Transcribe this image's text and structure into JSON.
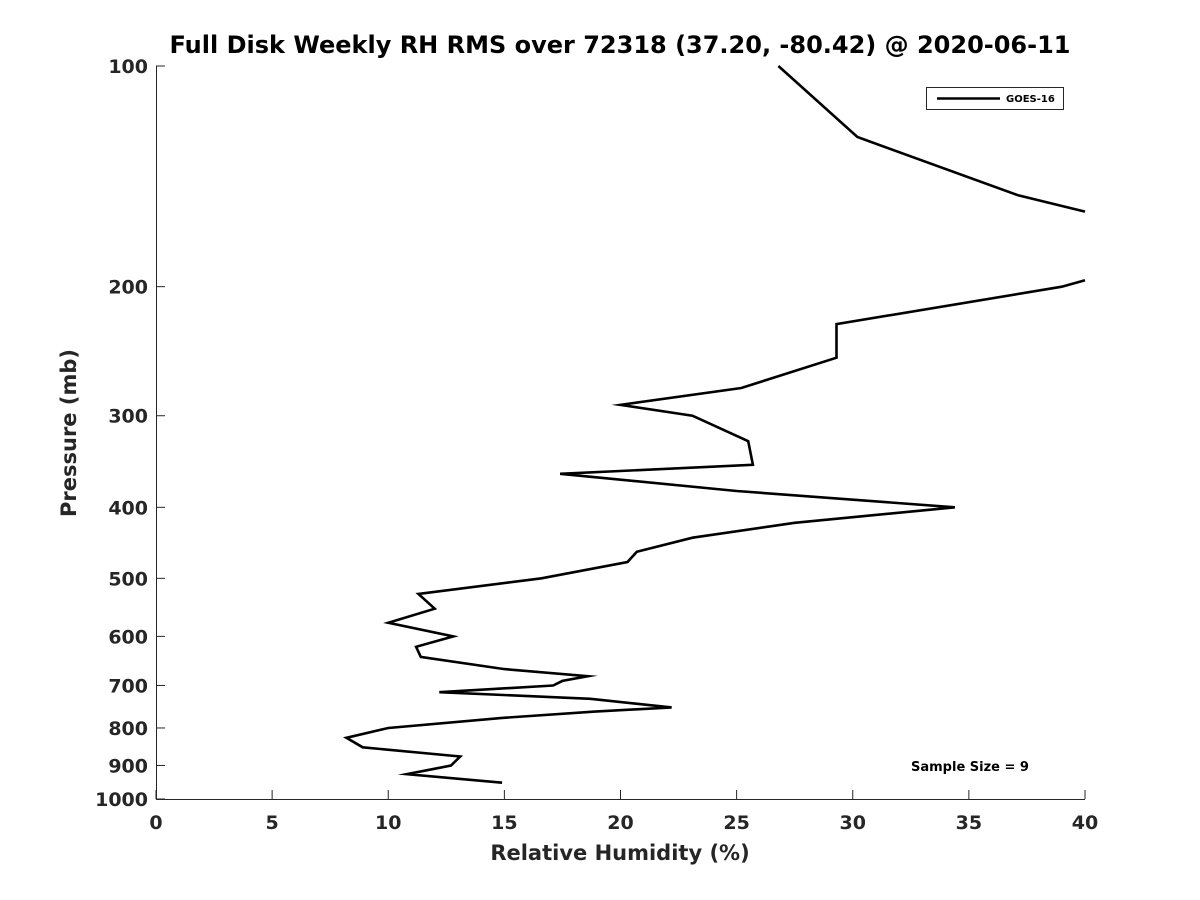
{
  "chart_data": {
    "type": "line",
    "title": "Full Disk Weekly RH RMS over 72318 (37.20, -80.42) @ 2020-06-11",
    "xlabel": "Relative Humidity (%)",
    "ylabel": "Pressure (mb)",
    "xlim": [
      0,
      40
    ],
    "ylim": [
      100,
      1000
    ],
    "yscale": "log",
    "yreversed": true,
    "grid": false,
    "x_ticks": [
      0,
      5,
      10,
      15,
      20,
      25,
      30,
      35,
      40
    ],
    "y_ticks": [
      100,
      200,
      300,
      400,
      500,
      600,
      700,
      800,
      900,
      1000
    ],
    "legend": {
      "placement": "top-right",
      "entries": [
        "GOES-16"
      ]
    },
    "annotation": "Sample Size = 9",
    "series": [
      {
        "name": "GOES-16",
        "segments": [
          [
            {
              "x": 26.8,
              "p": 100
            },
            {
              "x": 30.2,
              "p": 125
            },
            {
              "x": 37.1,
              "p": 150
            },
            {
              "x": 40.0,
              "p": 158
            }
          ],
          [
            {
              "x": 40.0,
              "p": 196
            },
            {
              "x": 39.0,
              "p": 200
            },
            {
              "x": 29.3,
              "p": 225
            },
            {
              "x": 29.3,
              "p": 250
            },
            {
              "x": 25.2,
              "p": 275
            },
            {
              "x": 20.0,
              "p": 290
            },
            {
              "x": 23.1,
              "p": 300
            },
            {
              "x": 25.5,
              "p": 325
            },
            {
              "x": 25.7,
              "p": 350
            },
            {
              "x": 17.4,
              "p": 360
            },
            {
              "x": 25.0,
              "p": 380
            },
            {
              "x": 34.4,
              "p": 400
            },
            {
              "x": 27.5,
              "p": 420
            },
            {
              "x": 23.1,
              "p": 440
            },
            {
              "x": 20.7,
              "p": 460
            },
            {
              "x": 20.3,
              "p": 475
            },
            {
              "x": 16.6,
              "p": 500
            },
            {
              "x": 11.3,
              "p": 525
            },
            {
              "x": 12.0,
              "p": 550
            },
            {
              "x": 10.0,
              "p": 575
            },
            {
              "x": 12.8,
              "p": 600
            },
            {
              "x": 11.2,
              "p": 620
            },
            {
              "x": 11.4,
              "p": 640
            },
            {
              "x": 15.0,
              "p": 665
            },
            {
              "x": 18.6,
              "p": 680
            },
            {
              "x": 17.5,
              "p": 690
            },
            {
              "x": 17.1,
              "p": 700
            },
            {
              "x": 12.2,
              "p": 715
            },
            {
              "x": 18.7,
              "p": 730
            },
            {
              "x": 22.2,
              "p": 750
            },
            {
              "x": 18.9,
              "p": 760
            },
            {
              "x": 14.9,
              "p": 775
            },
            {
              "x": 10.0,
              "p": 800
            },
            {
              "x": 8.2,
              "p": 825
            },
            {
              "x": 8.9,
              "p": 850
            },
            {
              "x": 13.1,
              "p": 875
            },
            {
              "x": 12.7,
              "p": 900
            },
            {
              "x": 10.8,
              "p": 925
            },
            {
              "x": 14.9,
              "p": 950
            }
          ]
        ]
      }
    ]
  }
}
